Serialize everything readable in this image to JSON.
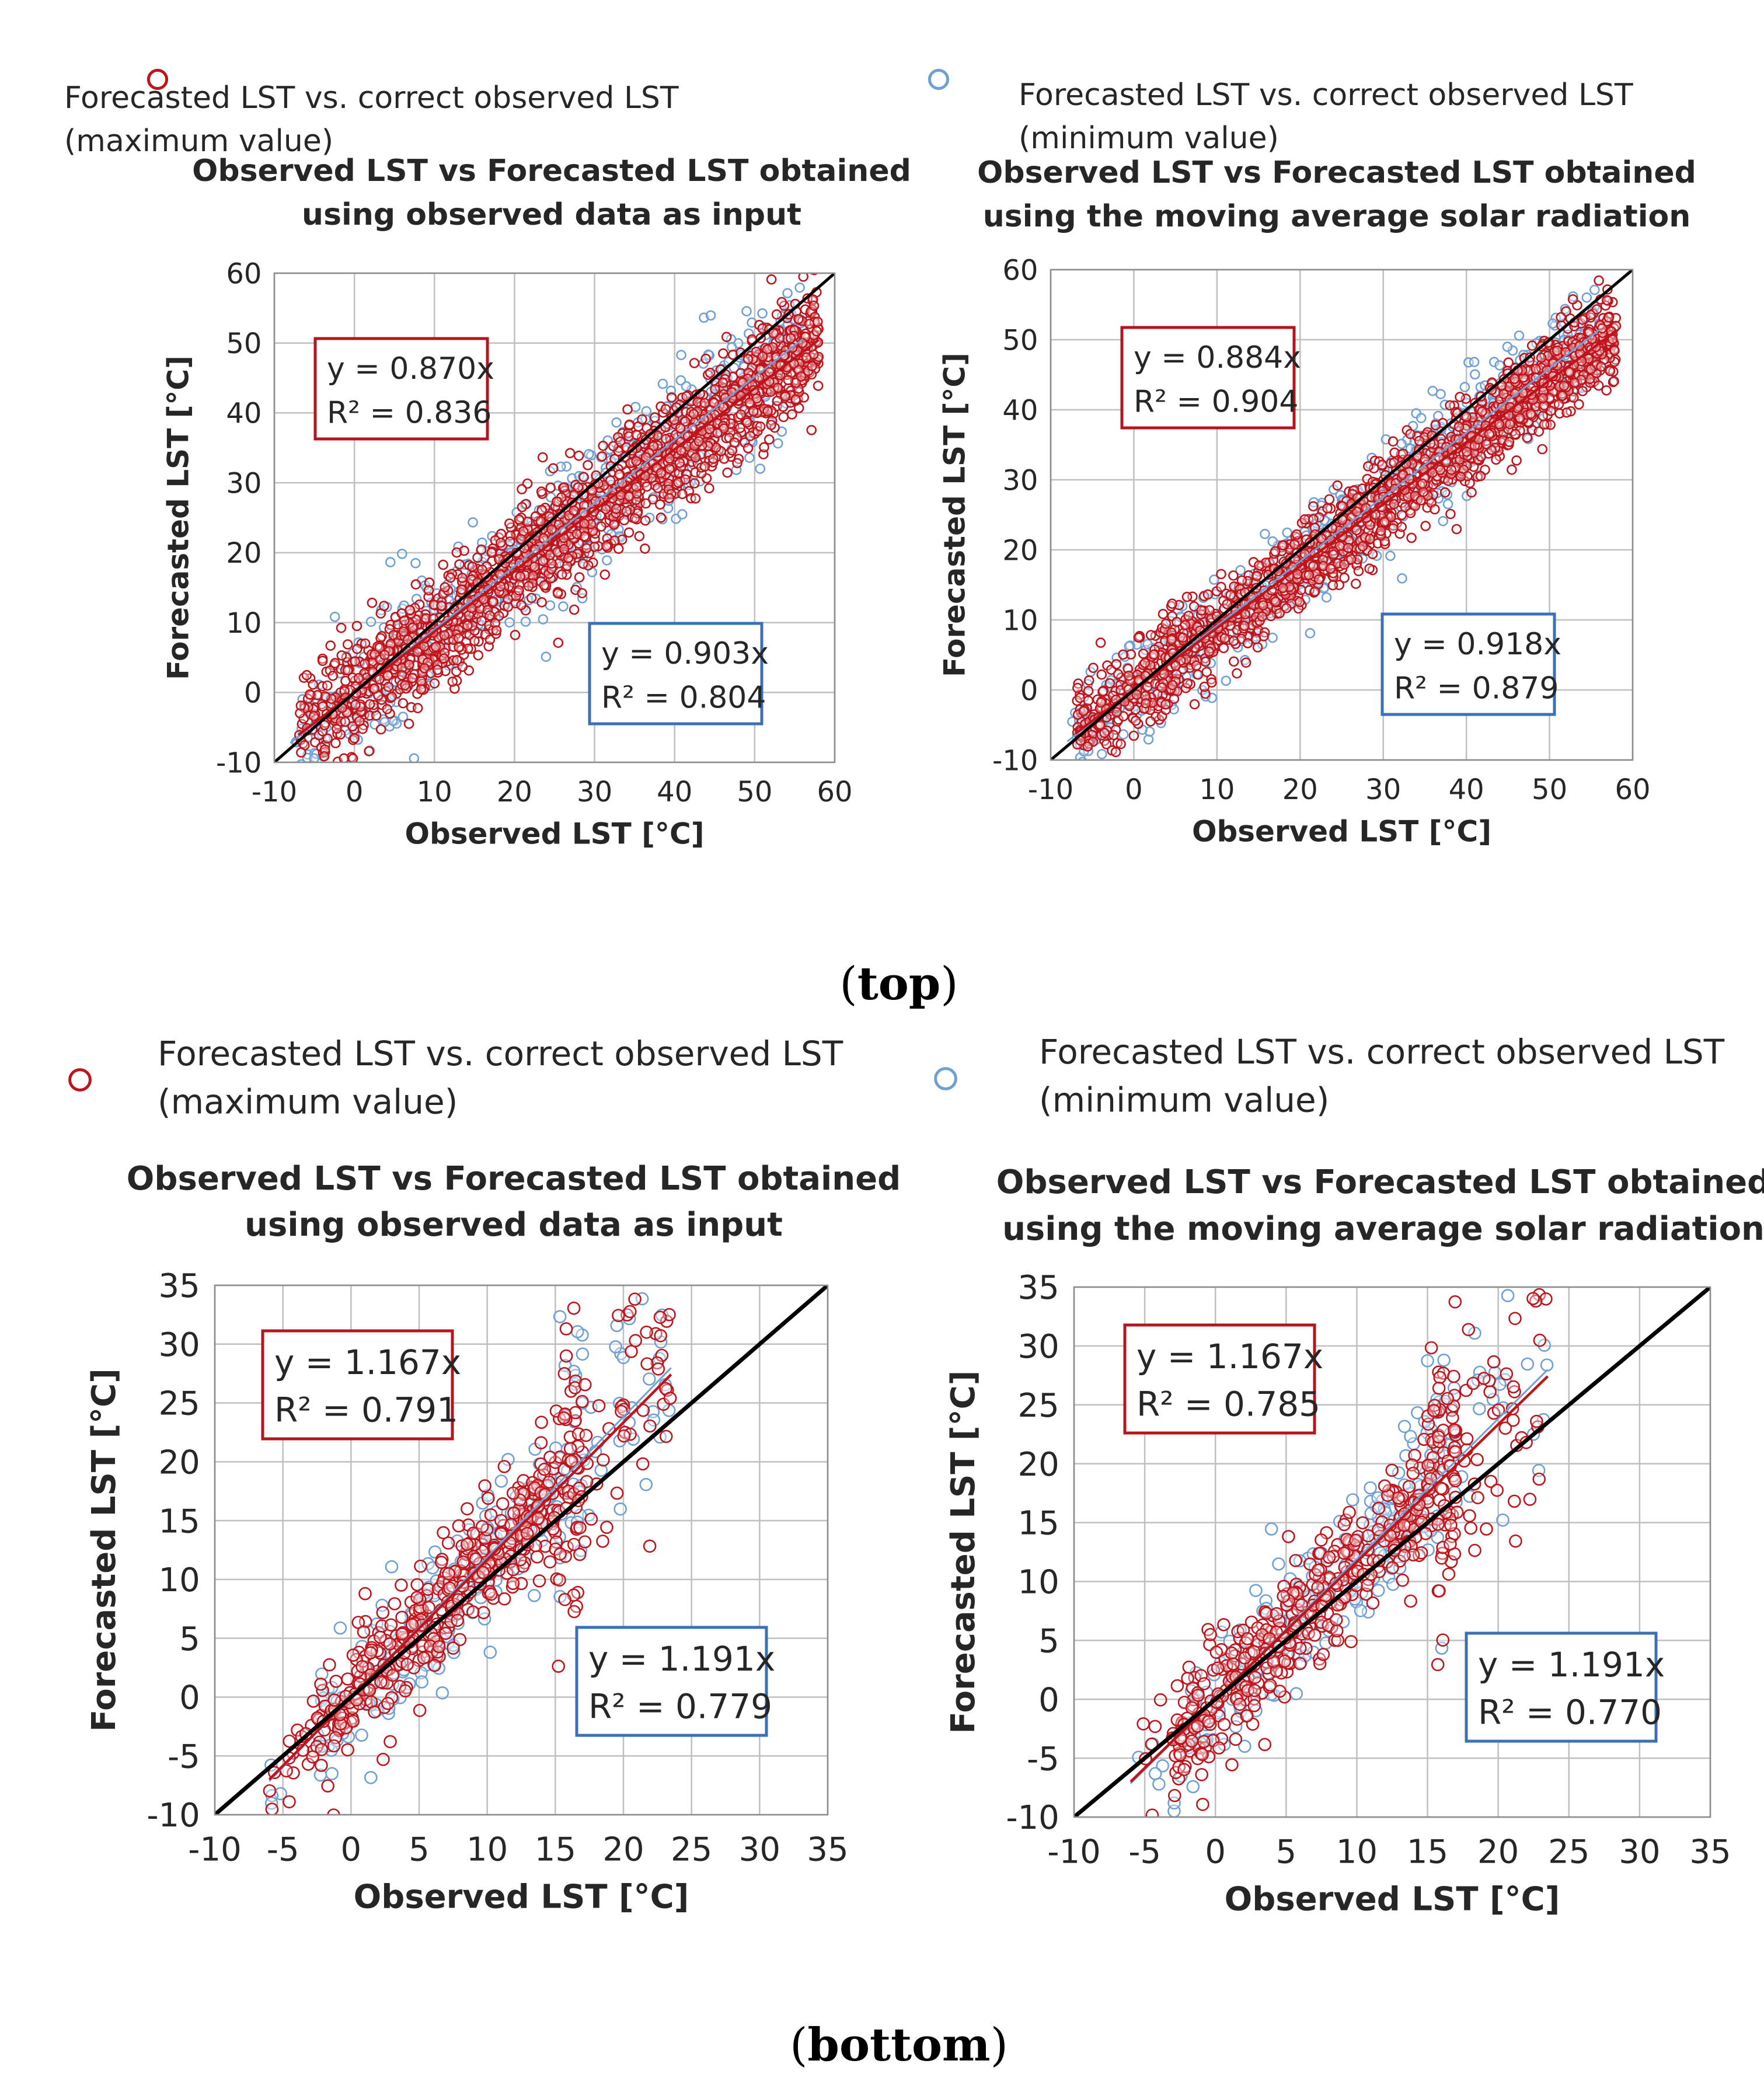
{
  "captions": [
    "top",
    "bottom"
  ],
  "colors": {
    "max": "#c0141c",
    "min": "#6fa0d4",
    "max_box": "#b3161d",
    "min_box": "#3b6fb6",
    "identity": "#000000",
    "grid": "#bfbfbf"
  },
  "chart_data": [
    {
      "type": "scatter",
      "panel": "top-left",
      "title": "Observed LST vs Forecasted LST obtained using observed data as input",
      "title_lines": [
        "Observed LST vs Forecasted LST obtained",
        "using observed data as input"
      ],
      "xlabel": "Observed LST [°C]",
      "ylabel": "Forecasted LST [°C]",
      "xlim": [
        -10,
        60
      ],
      "ylim": [
        -10,
        60
      ],
      "xticks": [
        "-10",
        "0",
        "10",
        "20",
        "30",
        "40",
        "50",
        "60"
      ],
      "yticks": [
        "-10",
        "0",
        "10",
        "20",
        "30",
        "40",
        "50",
        "60"
      ],
      "legend": [
        "Forecasted LST vs. correct observed LST",
        "(maximum value)",
        "Forecasted LST vs. correct observed LST",
        "(minimum value)"
      ],
      "series": [
        {
          "name": "Forecasted LST vs. correct observed LST (maximum value)",
          "slope": 0.87,
          "r2": 0.836,
          "x_range": [
            -7,
            58
          ],
          "spread": 4.0,
          "label_lines": [
            "y = 0.870x",
            "R² = 0.836"
          ]
        },
        {
          "name": "Forecasted LST vs. correct observed LST (minimum value)",
          "slope": 0.903,
          "r2": 0.804,
          "x_range": [
            -8,
            56
          ],
          "spread": 4.6,
          "label_lines": [
            "y = 0.903x",
            "R² = 0.804"
          ]
        }
      ],
      "grid": true
    },
    {
      "type": "scatter",
      "panel": "top-right",
      "title": "Observed LST vs Forecasted LST obtained using the moving average solar radiation",
      "title_lines": [
        "Observed LST vs Forecasted LST obtained",
        "using the moving average solar radiation"
      ],
      "xlabel": "Observed LST [°C]",
      "ylabel": "Forecasted LST [°C]",
      "xlim": [
        -10,
        60
      ],
      "ylim": [
        -10,
        60
      ],
      "xticks": [
        "-10",
        "0",
        "10",
        "20",
        "30",
        "40",
        "50",
        "60"
      ],
      "yticks": [
        "-10",
        "0",
        "10",
        "20",
        "30",
        "40",
        "50",
        "60"
      ],
      "legend": [
        "Forecasted LST vs. correct observed LST",
        "(maximum value)",
        "Forecasted LST vs. correct observed LST",
        "(minimum value)"
      ],
      "series": [
        {
          "name": "Forecasted LST vs. correct observed LST (maximum value)",
          "slope": 0.884,
          "r2": 0.904,
          "x_range": [
            -7,
            58
          ],
          "spread": 3.2,
          "label_lines": [
            "y = 0.884x",
            "R² = 0.904"
          ]
        },
        {
          "name": "Forecasted LST vs. correct observed LST (minimum value)",
          "slope": 0.918,
          "r2": 0.879,
          "x_range": [
            -8,
            56
          ],
          "spread": 3.6,
          "label_lines": [
            "y = 0.918x",
            "R² = 0.879"
          ]
        }
      ],
      "grid": true
    },
    {
      "type": "scatter",
      "panel": "bottom-left",
      "title": "Observed LST vs Forecasted LST obtained using observed data as input",
      "title_lines": [
        "Observed LST vs Forecasted LST obtained",
        "using observed data as input"
      ],
      "xlabel": "Observed LST [°C]",
      "ylabel": "Forecasted LST [°C]",
      "xlim": [
        -10,
        35
      ],
      "ylim": [
        -10,
        35
      ],
      "xticks": [
        "-10",
        "-5",
        "0",
        "5",
        "10",
        "15",
        "20",
        "25",
        "30",
        "35"
      ],
      "yticks": [
        "-10",
        "-5",
        "0",
        "5",
        "10",
        "15",
        "20",
        "25",
        "30",
        "35"
      ],
      "legend": [
        "Forecasted LST vs. correct observed LST",
        "(maximum value)",
        "Forecasted LST vs. correct observed LST",
        "(minimum value)"
      ],
      "series": [
        {
          "name": "Forecasted LST vs. correct observed LST (maximum value)",
          "slope": 1.167,
          "r2": 0.791,
          "x_range": [
            -6,
            23.5
          ],
          "spread": 2.6,
          "label_lines": [
            "y = 1.167x",
            "R² = 0.791"
          ]
        },
        {
          "name": "Forecasted LST vs. correct observed LST (minimum value)",
          "slope": 1.191,
          "r2": 0.779,
          "x_range": [
            -6,
            23.5
          ],
          "spread": 2.8,
          "label_lines": [
            "y = 1.191x",
            "R² = 0.779"
          ]
        }
      ],
      "grid": true
    },
    {
      "type": "scatter",
      "panel": "bottom-right",
      "title": "Observed LST vs Forecasted LST obtained using the moving average solar radiation",
      "title_lines": [
        "Observed LST vs Forecasted LST obtained",
        "using the moving average solar radiation"
      ],
      "xlabel": "Observed LST [°C]",
      "ylabel": "Forecasted LST [°C]",
      "xlim": [
        -10,
        35
      ],
      "ylim": [
        -10,
        35
      ],
      "xticks": [
        "-10",
        "-5",
        "0",
        "5",
        "10",
        "15",
        "20",
        "25",
        "30",
        "35"
      ],
      "yticks": [
        "-10",
        "-5",
        "0",
        "5",
        "10",
        "15",
        "20",
        "25",
        "30",
        "35"
      ],
      "legend": [
        "Forecasted LST vs. correct observed LST",
        "(maximum value)",
        "Forecasted LST vs. correct observed LST",
        "(minimum value)"
      ],
      "series": [
        {
          "name": "Forecasted LST vs. correct observed LST (maximum value)",
          "slope": 1.167,
          "r2": 0.785,
          "x_range": [
            -6,
            23.5
          ],
          "spread": 2.6,
          "label_lines": [
            "y = 1.167x",
            "R² = 0.785"
          ]
        },
        {
          "name": "Forecasted LST vs. correct observed LST (minimum value)",
          "slope": 1.191,
          "r2": 0.77,
          "x_range": [
            -6,
            23.5
          ],
          "spread": 2.8,
          "label_lines": [
            "y = 1.191x",
            "R² = 0.770"
          ]
        }
      ],
      "grid": true
    }
  ]
}
